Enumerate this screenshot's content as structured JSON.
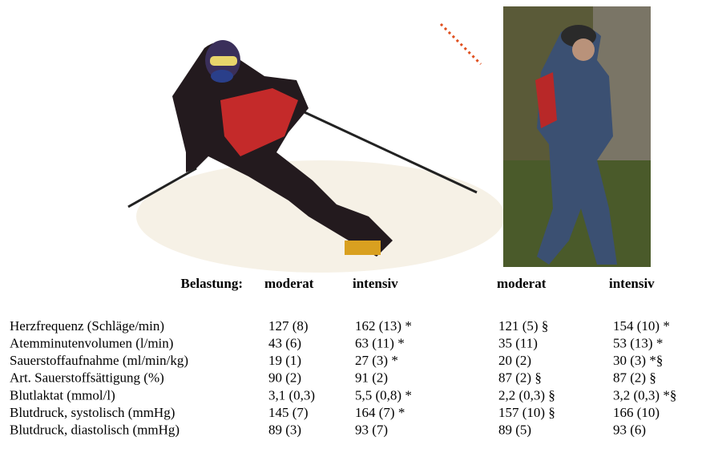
{
  "header": {
    "label": "Belastung:",
    "columns": [
      "moderat",
      "intensiv",
      "moderat",
      "intensiv"
    ]
  },
  "table": {
    "rows": [
      [
        "Herzfrequenz (Schläge/min)",
        "127 (8)",
        "162 (13) *",
        "121 (5) §",
        "154 (10) *"
      ],
      [
        "Atemminutenvolumen (l/min)",
        "43 (6)",
        "63 (11) *",
        "35 (11)",
        "53 (13) *"
      ],
      [
        "Sauerstoffaufnahme (ml/min/kg)",
        "19 (1)",
        "27 (3) *",
        "20 (2)",
        "30 (3) *§"
      ],
      [
        "Art. Sauerstoffsättigung (%)",
        "90 (2)",
        "91 (2)",
        "87 (2) §",
        "87 (2) §"
      ],
      [
        "Blutlaktat (mmol/l)",
        "3,1 (0,3)",
        "5,5 (0,8) *",
        "2,2 (0,3) §",
        "3,2 (0,3) *§"
      ],
      [
        "Blutdruck, systolisch (mmHg)",
        "145 (7)",
        "164 (7) *",
        "157 (10) §",
        "166 (10)"
      ],
      [
        "Blutdruck, diastolisch (mmHg)",
        "89 (3)",
        "93 (7)",
        "89 (5)",
        "93 (6)"
      ]
    ]
  }
}
